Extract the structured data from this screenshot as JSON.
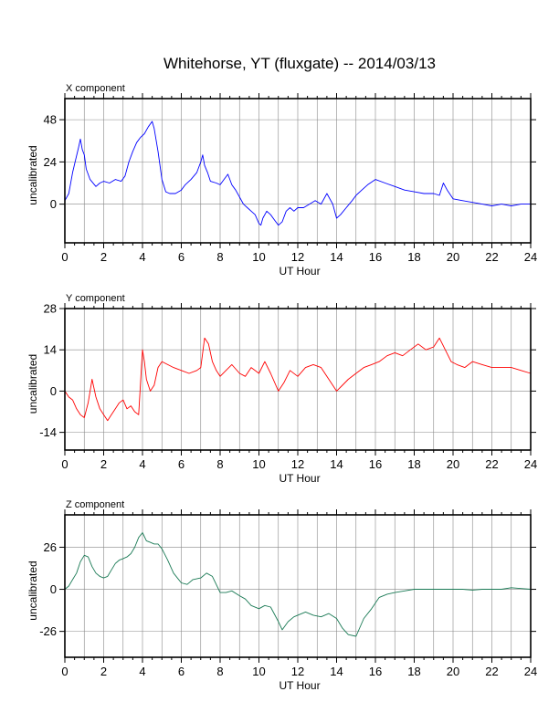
{
  "chart_data": {
    "title": "Whitehorse, YT (fluxgate) -- 2014/03/13",
    "panels": [
      {
        "type": "line",
        "label": "X component",
        "xlabel": "UT Hour",
        "ylabel": "uncalibrated",
        "xlim": [
          0,
          24
        ],
        "ylim": [
          -22,
          60
        ],
        "x_ticks": [
          "0",
          "2",
          "4",
          "6",
          "8",
          "10",
          "12",
          "14",
          "16",
          "18",
          "20",
          "22",
          "24"
        ],
        "y_ticks": [
          0,
          24,
          48
        ],
        "grid": true,
        "color": "#0000ff",
        "series": [
          {
            "name": "X",
            "x": [
              0,
              0.2,
              0.4,
              0.55,
              0.7,
              0.8,
              0.9,
              1.0,
              1.1,
              1.3,
              1.6,
              1.8,
              2.0,
              2.3,
              2.6,
              2.9,
              3.1,
              3.3,
              3.5,
              3.7,
              3.9,
              4.1,
              4.3,
              4.5,
              4.6,
              4.8,
              5.0,
              5.2,
              5.4,
              5.7,
              6.0,
              6.2,
              6.5,
              6.8,
              7.0,
              7.1,
              7.2,
              7.35,
              7.5,
              7.8,
              8.0,
              8.2,
              8.4,
              8.6,
              8.8,
              9.0,
              9.2,
              9.4,
              9.6,
              9.8,
              10.0,
              10.1,
              10.2,
              10.4,
              10.6,
              10.8,
              11.0,
              11.2,
              11.4,
              11.6,
              11.8,
              12.0,
              12.3,
              12.6,
              12.9,
              13.2,
              13.5,
              13.8,
              14.0,
              14.2,
              14.5,
              14.8,
              15.0,
              15.3,
              15.6,
              16.0,
              16.5,
              17.0,
              17.5,
              18.0,
              18.5,
              19.0,
              19.3,
              19.5,
              19.7,
              20.0,
              20.5,
              21.0,
              21.5,
              22.0,
              22.5,
              23.0,
              23.5,
              24.0
            ],
            "values": [
              2,
              6,
              18,
              25,
              32,
              37,
              31,
              28,
              20,
              14,
              10,
              12,
              13,
              12,
              14,
              13,
              16,
              24,
              30,
              35,
              38,
              40,
              44,
              47,
              43,
              30,
              14,
              7,
              6,
              6,
              8,
              11,
              14,
              18,
              24,
              28,
              22,
              18,
              13,
              12,
              11,
              14,
              17,
              11,
              8,
              4,
              0,
              -2,
              -4,
              -6,
              -11,
              -12,
              -8,
              -4,
              -6,
              -9,
              -12,
              -10,
              -4,
              -2,
              -4,
              -2,
              -2,
              0,
              2,
              0,
              6,
              0,
              -8,
              -6,
              -2,
              2,
              5,
              8,
              11,
              14,
              12,
              10,
              8,
              7,
              6,
              6,
              5,
              12,
              8,
              3,
              2,
              1,
              0,
              -1,
              0,
              -1,
              0,
              0
            ]
          }
        ]
      },
      {
        "type": "line",
        "label": "Y component",
        "xlabel": "UT Hour",
        "ylabel": "uncalibrated",
        "xlim": [
          0,
          24
        ],
        "ylim": [
          -20,
          28
        ],
        "x_ticks": [
          "0",
          "2",
          "4",
          "6",
          "8",
          "10",
          "12",
          "14",
          "16",
          "18",
          "20",
          "22",
          "24"
        ],
        "y_ticks": [
          -14,
          0,
          14,
          28
        ],
        "grid": true,
        "color": "#ff0000",
        "series": [
          {
            "name": "Y",
            "x": [
              0,
              0.2,
              0.4,
              0.6,
              0.8,
              1.0,
              1.2,
              1.4,
              1.6,
              1.8,
              2.0,
              2.2,
              2.4,
              2.6,
              2.8,
              3.0,
              3.2,
              3.4,
              3.6,
              3.8,
              4.0,
              4.1,
              4.2,
              4.4,
              4.6,
              4.8,
              5.0,
              5.3,
              5.6,
              6.0,
              6.4,
              6.8,
              7.0,
              7.2,
              7.4,
              7.6,
              7.8,
              8.0,
              8.3,
              8.6,
              9.0,
              9.3,
              9.6,
              10.0,
              10.3,
              10.6,
              11.0,
              11.3,
              11.6,
              12.0,
              12.4,
              12.8,
              13.2,
              13.6,
              14.0,
              14.3,
              14.6,
              15.0,
              15.4,
              15.8,
              16.2,
              16.6,
              17.0,
              17.4,
              17.8,
              18.2,
              18.6,
              19.0,
              19.3,
              19.6,
              19.9,
              20.2,
              20.6,
              21.0,
              21.5,
              22.0,
              22.5,
              23.0,
              23.5,
              24.0
            ],
            "values": [
              0,
              -2,
              -3,
              -6,
              -8,
              -9,
              -4,
              4,
              -2,
              -6,
              -8,
              -10,
              -8,
              -6,
              -4,
              -3,
              -6,
              -5,
              -7,
              -8,
              14,
              10,
              4,
              0,
              2,
              8,
              10,
              9,
              8,
              7,
              6,
              7,
              8,
              18,
              16,
              10,
              7,
              5,
              7,
              9,
              6,
              5,
              8,
              6,
              10,
              6,
              0,
              3,
              7,
              5,
              8,
              9,
              8,
              4,
              0,
              2,
              4,
              6,
              8,
              9,
              10,
              12,
              13,
              12,
              14,
              16,
              14,
              15,
              18,
              14,
              10,
              9,
              8,
              10,
              9,
              8,
              8,
              8,
              7,
              6
            ]
          }
        ]
      },
      {
        "type": "line",
        "label": "Z component",
        "xlabel": "UT Hour",
        "ylabel": "uncalibrated",
        "xlim": [
          0,
          24
        ],
        "ylim": [
          -42,
          46
        ],
        "x_ticks": [
          "0",
          "2",
          "4",
          "6",
          "8",
          "10",
          "12",
          "14",
          "16",
          "18",
          "20",
          "22",
          "24"
        ],
        "y_ticks": [
          -26,
          0,
          26
        ],
        "grid": true,
        "color": "#1a7a55",
        "series": [
          {
            "name": "Z",
            "x": [
              0,
              0.2,
              0.4,
              0.6,
              0.8,
              1.0,
              1.2,
              1.4,
              1.6,
              1.8,
              2.0,
              2.2,
              2.4,
              2.6,
              2.8,
              3.0,
              3.2,
              3.4,
              3.6,
              3.8,
              4.0,
              4.2,
              4.4,
              4.6,
              4.8,
              5.0,
              5.3,
              5.6,
              6.0,
              6.3,
              6.6,
              7.0,
              7.3,
              7.6,
              8.0,
              8.3,
              8.6,
              9.0,
              9.3,
              9.6,
              10.0,
              10.3,
              10.6,
              11.0,
              11.2,
              11.5,
              11.8,
              12.0,
              12.4,
              12.8,
              13.2,
              13.6,
              14.0,
              14.3,
              14.6,
              15.0,
              15.4,
              15.8,
              16.2,
              16.6,
              17.0,
              17.5,
              18.0,
              18.5,
              19.0,
              19.5,
              20.0,
              20.5,
              21.0,
              21.5,
              22.0,
              22.5,
              23.0,
              23.5,
              24.0
            ],
            "values": [
              0,
              2,
              6,
              10,
              17,
              21,
              20,
              14,
              10,
              8,
              7,
              8,
              12,
              16,
              18,
              19,
              20,
              22,
              26,
              32,
              35,
              30,
              29,
              28,
              28,
              25,
              18,
              10,
              4,
              3,
              6,
              7,
              10,
              8,
              -2,
              -2,
              -1,
              -4,
              -6,
              -10,
              -12,
              -10,
              -11,
              -20,
              -25,
              -20,
              -17,
              -16,
              -14,
              -16,
              -17,
              -15,
              -18,
              -24,
              -28,
              -29,
              -18,
              -12,
              -5,
              -3,
              -2,
              -1,
              0,
              0,
              0,
              0,
              0,
              0,
              -0.5,
              0,
              0,
              0,
              1,
              0.5,
              0
            ]
          }
        ]
      }
    ]
  }
}
